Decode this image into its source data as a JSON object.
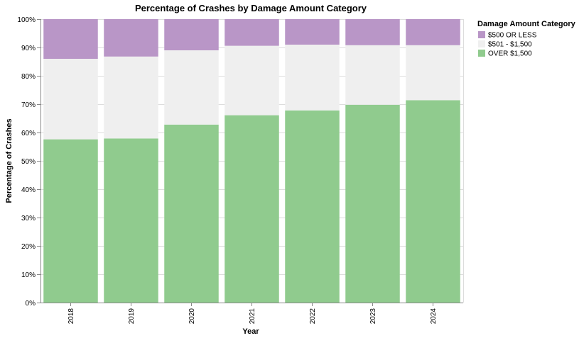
{
  "chart_data": {
    "type": "bar",
    "stacked": true,
    "normalized": true,
    "title": "Percentage of Crashes by Damage Amount Category",
    "xlabel": "Year",
    "ylabel": "Percentage of Crashes",
    "ylim": [
      0,
      100
    ],
    "y_ticks": [
      "0%",
      "10%",
      "20%",
      "30%",
      "40%",
      "50%",
      "60%",
      "70%",
      "80%",
      "90%",
      "100%"
    ],
    "categories": [
      "2018",
      "2019",
      "2020",
      "2021",
      "2022",
      "2023",
      "2024"
    ],
    "grid": true,
    "legend": {
      "title": "Damage Amount Category",
      "position": "top-right"
    },
    "series": [
      {
        "name": "OVER $1,500",
        "color": "#90cb8e",
        "values": [
          57.6,
          57.9,
          62.8,
          66.1,
          67.8,
          69.8,
          71.4
        ]
      },
      {
        "name": "$501 - $1,500",
        "color": "#efefef",
        "values": [
          28.4,
          28.9,
          26.2,
          24.5,
          23.2,
          21.0,
          19.4
        ]
      },
      {
        "name": "$500 OR LESS",
        "color": "#b996c7",
        "values": [
          14.0,
          13.2,
          11.0,
          9.4,
          9.0,
          9.2,
          9.2
        ]
      }
    ],
    "legend_order": [
      "$500 OR LESS",
      "$501 - $1,500",
      "OVER $1,500"
    ]
  }
}
